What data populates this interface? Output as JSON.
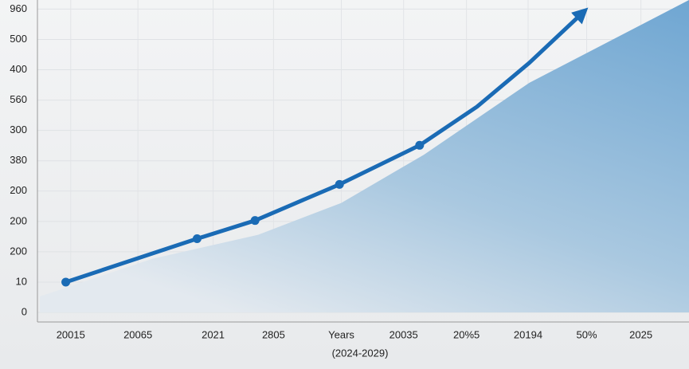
{
  "chart_data": {
    "type": "line",
    "x_label": "(2024-2029)",
    "xlim": [
      0,
      10.57
    ],
    "xticks": [
      {
        "value": 0.54,
        "label": "20015"
      },
      {
        "value": 1.63,
        "label": "20065"
      },
      {
        "value": 2.85,
        "label": "2021"
      },
      {
        "value": 3.83,
        "label": "2805"
      },
      {
        "value": 4.93,
        "label": "Years"
      },
      {
        "value": 5.94,
        "label": "20035"
      },
      {
        "value": 6.96,
        "label": "20%5"
      },
      {
        "value": 7.96,
        "label": "20194"
      },
      {
        "value": 8.91,
        "label": "50%"
      },
      {
        "value": 9.79,
        "label": "2025"
      }
    ],
    "ylim": [
      0,
      10.3
    ],
    "yticks": [
      {
        "value": 0,
        "label": "0"
      },
      {
        "value": 1,
        "label": "10"
      },
      {
        "value": 2,
        "label": "200"
      },
      {
        "value": 3,
        "label": "200"
      },
      {
        "value": 4,
        "label": "200"
      },
      {
        "value": 5,
        "label": "380"
      },
      {
        "value": 6,
        "label": "300"
      },
      {
        "value": 7,
        "label": "560"
      },
      {
        "value": 8,
        "label": "400"
      },
      {
        "value": 9,
        "label": "500"
      },
      {
        "value": 10,
        "label": "960"
      }
    ],
    "grid": true,
    "series": [
      {
        "kind": "line",
        "color": "#1a6bb5",
        "arrow": true,
        "x": [
          0.46,
          2.59,
          3.53,
          4.9,
          6.2,
          7.13,
          7.98,
          8.84
        ],
        "values": [
          1.0,
          2.43,
          3.03,
          4.22,
          5.51,
          6.78,
          8.23,
          9.87
        ],
        "markers": [
          true,
          true,
          true,
          true,
          true,
          false,
          false,
          false
        ]
      },
      {
        "kind": "area",
        "color": "#6fa6d2",
        "x": [
          0.04,
          1.87,
          3.58,
          4.93,
          6.27,
          7.98,
          10.57
        ],
        "values": [
          0.53,
          1.77,
          2.56,
          3.61,
          5.2,
          7.57,
          10.3
        ]
      }
    ]
  }
}
